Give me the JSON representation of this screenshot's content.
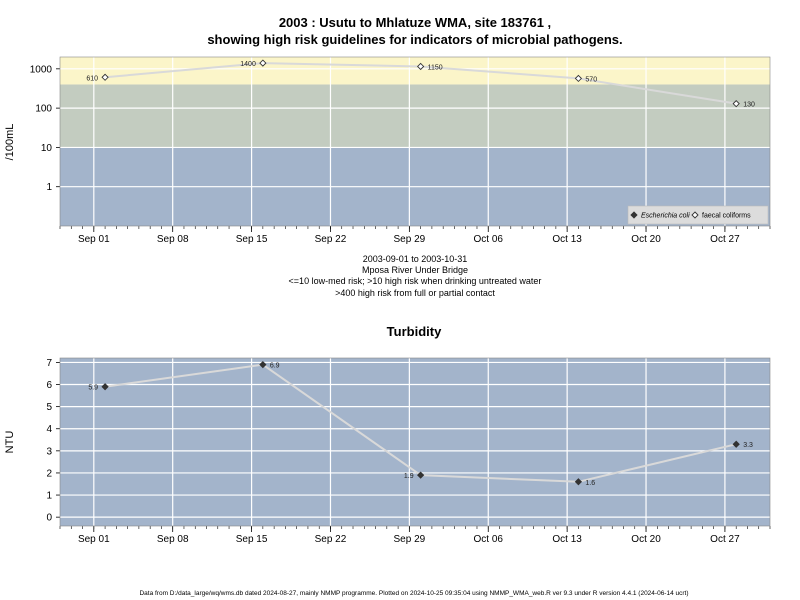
{
  "title_line1": "2003 : Usutu to Mhlatuze WMA, site 183761 ,",
  "title_line2": "showing high risk guidelines for indicators of microbial pathogens.",
  "caption": {
    "line1": "2003-09-01 to 2003-10-31",
    "line2": "Mposa River Under Bridge",
    "line3": "<=10 low-med risk; >10 high risk when drinking untreated water",
    "line4": ">400 high risk from full or partial contact"
  },
  "footer": "Data from D:/data_large/wq/wms.db dated 2024-08-27, mainly NMMP programme. Plotted on 2024-10-25 09:35:04 using NMMP_WMA_web.R ver 9.3 under R version 4.4.1 (2024-06-14 ucrt)",
  "colors": {
    "high_band": "#fbf5c9",
    "mid_band": "#c3ccc0",
    "low_band": "#a3b4cb",
    "grid": "#ffffff",
    "line": "#d9d9d9",
    "marker": "#333333"
  },
  "x_ticks": [
    "Sep 01",
    "Sep 08",
    "Sep 15",
    "Sep 22",
    "Sep 29",
    "Oct 06",
    "Oct 13",
    "Oct 20",
    "Oct 27"
  ],
  "chart_data": [
    {
      "type": "line",
      "title": "",
      "ylabel": "/100mL",
      "yscale": "log",
      "y_ticks": [
        "1",
        "10",
        "100",
        "1000"
      ],
      "ylim": [
        0.1,
        2000
      ],
      "xlim": [
        "2003-08-29",
        "2003-10-31"
      ],
      "risk_bands": [
        {
          "from": 0.1,
          "to": 10,
          "color": "low_band"
        },
        {
          "from": 10,
          "to": 400,
          "color": "mid_band"
        },
        {
          "from": 400,
          "to": 2000,
          "color": "high_band"
        }
      ],
      "legend": {
        "position": "bottom-right",
        "entries": [
          {
            "label": "Escherichia coli",
            "italic": true,
            "marker": "filled-diamond"
          },
          {
            "label": "faecal coliforms",
            "italic": false,
            "marker": "open-diamond"
          }
        ]
      },
      "series": [
        {
          "name": "faecal coliforms",
          "marker": "open-diamond",
          "x": [
            "2003-09-02",
            "2003-09-16",
            "2003-09-30",
            "2003-10-14",
            "2003-10-28"
          ],
          "y": [
            610,
            1400,
            1150,
            570,
            130
          ],
          "labels": [
            "610",
            "1400",
            "1150",
            "570",
            "130"
          ],
          "label_side": [
            "left",
            "left",
            "right",
            "right",
            "right"
          ]
        }
      ]
    },
    {
      "type": "line",
      "title": "Turbidity",
      "ylabel": "NTU",
      "y_ticks": [
        "0",
        "1",
        "2",
        "3",
        "4",
        "5",
        "6",
        "7"
      ],
      "ylim": [
        -0.4,
        7.2
      ],
      "xlim": [
        "2003-08-29",
        "2003-10-31"
      ],
      "series": [
        {
          "marker": "filled-diamond",
          "x": [
            "2003-09-02",
            "2003-09-16",
            "2003-09-30",
            "2003-10-14",
            "2003-10-28"
          ],
          "y": [
            5.9,
            6.9,
            1.9,
            1.6,
            3.3
          ],
          "labels": [
            "5.9",
            "6.9",
            "1.9",
            "1.6",
            "3.3"
          ],
          "label_side": [
            "left",
            "right",
            "left",
            "right",
            "right"
          ]
        }
      ]
    }
  ]
}
